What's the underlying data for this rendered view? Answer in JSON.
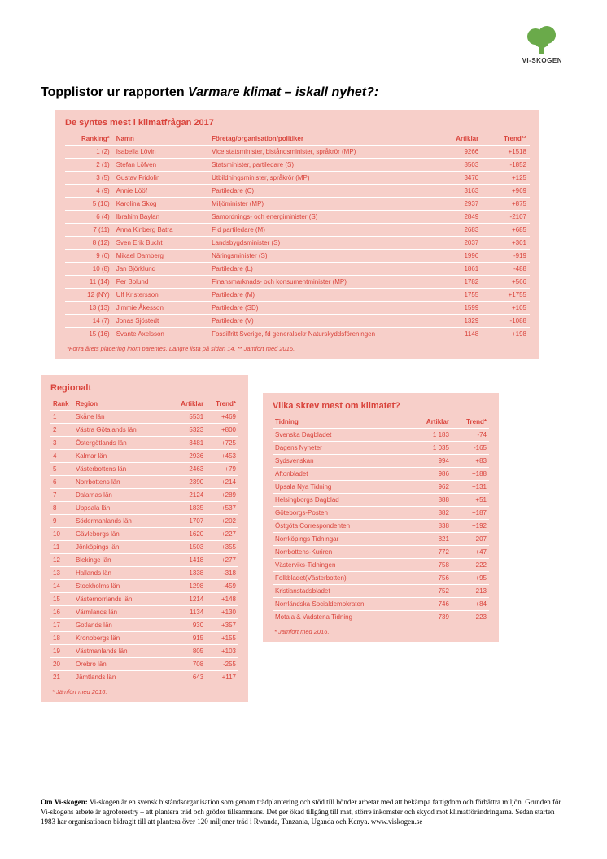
{
  "logo": {
    "label": "VI-SKOGEN",
    "tree_color": "#6aaa4a",
    "trunk_color": "#6aaa4a"
  },
  "title_plain": "Topplistor ur rapporten ",
  "title_italic": "Varmare klimat – iskall nyhet?:",
  "main_table": {
    "title": "De syntes mest i klimatfrågan 2017",
    "columns": [
      "Ranking*",
      "Namn",
      "Företag/organisation/politiker",
      "Artiklar",
      "Trend**"
    ],
    "rows": [
      [
        "1 (2)",
        "Isabella Lövin",
        "Vice statsminister, biståndsminister, språkrör (MP)",
        "9266",
        "+1518"
      ],
      [
        "2 (1)",
        "Stefan Löfven",
        "Statsminister, partiledare (S)",
        "8503",
        "-1852"
      ],
      [
        "3 (5)",
        "Gustav Fridolin",
        "Utbildningsminister, språkrör (MP)",
        "3470",
        "+125"
      ],
      [
        "4 (9)",
        "Annie Lööf",
        "Partiledare (C)",
        "3163",
        "+969"
      ],
      [
        "5 (10)",
        "Karolina Skog",
        "Miljöminister (MP)",
        "2937",
        "+875"
      ],
      [
        "6 (4)",
        "Ibrahim Baylan",
        "Samordnings- och energiminister (S)",
        "2849",
        "-2107"
      ],
      [
        "7 (11)",
        "Anna Kinberg Batra",
        "F d partiledare (M)",
        "2683",
        "+685"
      ],
      [
        "8 (12)",
        "Sven Erik Bucht",
        "Landsbygdsminister (S)",
        "2037",
        "+301"
      ],
      [
        "9 (6)",
        "Mikael Damberg",
        "Näringsminister (S)",
        "1996",
        "-919"
      ],
      [
        "10 (8)",
        "Jan Björklund",
        "Partiledare (L)",
        "1861",
        "-488"
      ],
      [
        "11 (14)",
        "Per Bolund",
        "Finansmarknads- och konsumentminister (MP)",
        "1782",
        "+566"
      ],
      [
        "12 (NY)",
        "Ulf Kristersson",
        "Partiledare (M)",
        "1755",
        "+1755"
      ],
      [
        "13 (13)",
        "Jimmie Åkesson",
        "Partiledare (SD)",
        "1599",
        "+105"
      ],
      [
        "14 (7)",
        "Jonas Sjöstedt",
        "Partiledare (V)",
        "1329",
        "-1088"
      ],
      [
        "15 (16)",
        "Svante Axelsson",
        "Fossilfritt Sverige, fd generalsekr Naturskyddsföreningen",
        "1148",
        "+198"
      ]
    ],
    "footnote": "*Förra årets placering inom parentes. Längre lista på sidan 14. ** Jämfört med 2016."
  },
  "regional_table": {
    "title": "Regionalt",
    "columns": [
      "Rank",
      "Region",
      "Artiklar",
      "Trend*"
    ],
    "rows": [
      [
        "1",
        "Skåne län",
        "5531",
        "+469"
      ],
      [
        "2",
        "Västra Götalands län",
        "5323",
        "+800"
      ],
      [
        "3",
        "Östergötlands län",
        "3481",
        "+725"
      ],
      [
        "4",
        "Kalmar län",
        "2936",
        "+453"
      ],
      [
        "5",
        "Västerbottens län",
        "2463",
        "+79"
      ],
      [
        "6",
        "Norrbottens län",
        "2390",
        "+214"
      ],
      [
        "7",
        "Dalarnas län",
        "2124",
        "+289"
      ],
      [
        "8",
        "Uppsala län",
        "1835",
        "+537"
      ],
      [
        "9",
        "Södermanlands län",
        "1707",
        "+202"
      ],
      [
        "10",
        "Gävleborgs län",
        "1620",
        "+227"
      ],
      [
        "11",
        "Jönköpings län",
        "1503",
        "+355"
      ],
      [
        "12",
        "Blekinge län",
        "1418",
        "+277"
      ],
      [
        "13",
        "Hallands län",
        "1338",
        "-318"
      ],
      [
        "14",
        "Stockholms län",
        "1298",
        "-459"
      ],
      [
        "15",
        "Västernorrlands län",
        "1214",
        "+148"
      ],
      [
        "16",
        "Värmlands län",
        "1134",
        "+130"
      ],
      [
        "17",
        "Gotlands län",
        "930",
        "+357"
      ],
      [
        "18",
        "Kronobergs län",
        "915",
        "+155"
      ],
      [
        "19",
        "Västmanlands län",
        "805",
        "+103"
      ],
      [
        "20",
        "Örebro län",
        "708",
        "-255"
      ],
      [
        "21",
        "Jämtlands län",
        "643",
        "+117"
      ]
    ],
    "footnote": "* Jämfört med 2016."
  },
  "news_table": {
    "title": "Vilka skrev mest om klimatet?",
    "columns": [
      "Tidning",
      "Artiklar",
      "Trend*"
    ],
    "rows": [
      [
        "Svenska Dagbladet",
        "1 183",
        "-74"
      ],
      [
        "Dagens Nyheter",
        "1 035",
        "-165"
      ],
      [
        "Sydsvenskan",
        "994",
        "+83"
      ],
      [
        "Aftonbladet",
        "986",
        "+188"
      ],
      [
        "Upsala Nya Tidning",
        "962",
        "+131"
      ],
      [
        "Helsingborgs Dagblad",
        "888",
        "+51"
      ],
      [
        "Göteborgs-Posten",
        "882",
        "+187"
      ],
      [
        "Östgöta Correspondenten",
        "838",
        "+192"
      ],
      [
        "Norrköpings Tidningar",
        "821",
        "+207"
      ],
      [
        "Norrbottens-Kuriren",
        "772",
        "+47"
      ],
      [
        "Västerviks-Tidningen",
        "758",
        "+222"
      ],
      [
        "Folkbladet(Västerbotten)",
        "756",
        "+95"
      ],
      [
        "Kristianstadsbladet",
        "752",
        "+213"
      ],
      [
        "Norrländska Socialdemokraten",
        "746",
        "+84"
      ],
      [
        "Motala & Vadstena Tidning",
        "739",
        "+223"
      ]
    ],
    "footnote": "* Jämfört med 2016."
  },
  "about": {
    "bold": "Om Vi-skogen:",
    "text": " Vi-skogen är en svensk biståndsorganisation som genom trädplantering och stöd till bönder arbetar med att bekämpa fattigdom och förbättra miljön. Grunden för Vi-skogens arbete är agroforestry – att plantera träd och grödor tillsammans. Det ger ökad tillgång till mat, större inkomster och skydd mot klimatförändringarna. Sedan starten 1983 har organisationen bidragit till att plantera över 120 miljoner träd i Rwanda, Tanzania, Uganda och Kenya. www.viskogen.se"
  },
  "style": {
    "panel_bg": "#f7cfc9",
    "accent": "#d9433b",
    "row_border": "#ffffff"
  }
}
